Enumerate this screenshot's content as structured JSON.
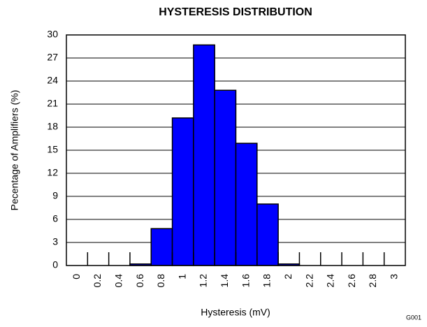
{
  "chart_data": {
    "type": "bar",
    "title": "HYSTERESIS DISTRIBUTION",
    "x_label": "Hysteresis (mV)",
    "y_label": "Pecentage of Amplifiers (%)",
    "annotation": "G001",
    "categories": [
      "0",
      "0.2",
      "0.4",
      "0.6",
      "0.8",
      "1",
      "1.2",
      "1.4",
      "1.6",
      "1.8",
      "2",
      "2.2",
      "2.4",
      "2.6",
      "2.8",
      "3"
    ],
    "values": [
      0,
      0,
      0,
      0.2,
      4.8,
      19.2,
      28.7,
      22.8,
      15.9,
      8.0,
      0.2,
      0,
      0,
      0,
      0,
      0
    ],
    "color": "#0000ff",
    "ylim": [
      0,
      30
    ],
    "yticks": [
      0,
      3,
      6,
      9,
      12,
      15,
      18,
      21,
      24,
      27,
      30
    ],
    "grid": true
  }
}
